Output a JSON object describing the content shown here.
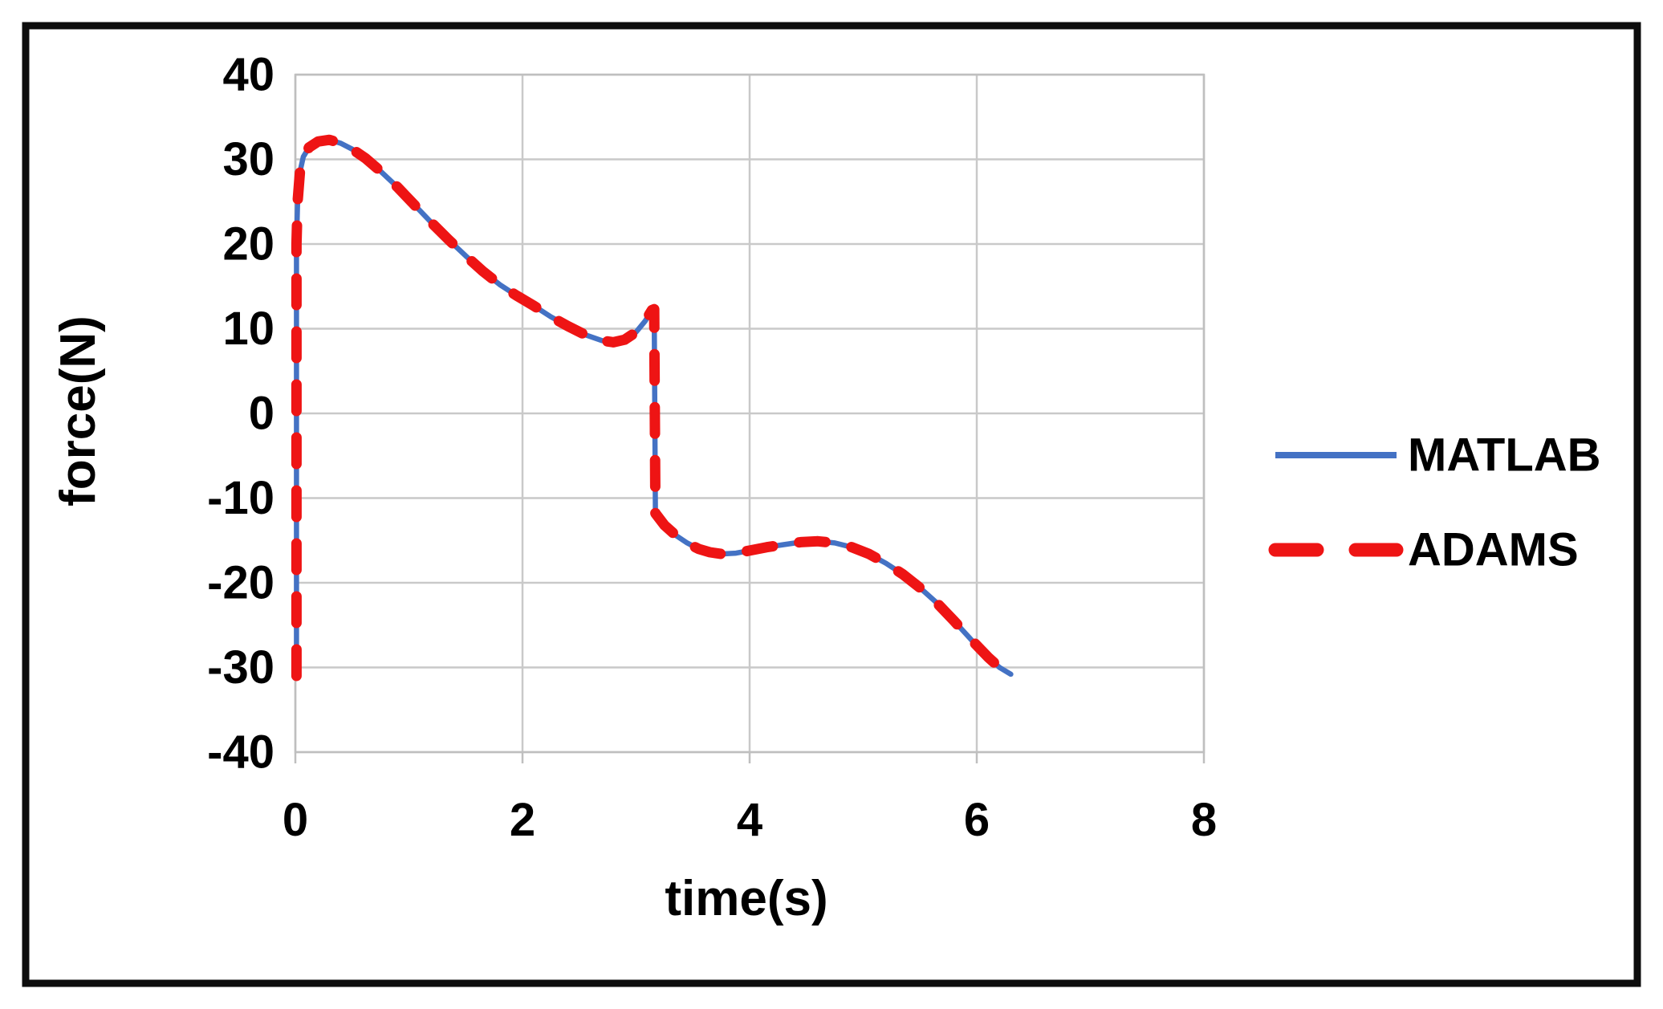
{
  "styles": {
    "background": "#FFFFFF",
    "frame_color": "#0D0D0D",
    "grid_color": "#C9C9C9",
    "axis_color": "#BFBFBF",
    "text_color": "#000000"
  },
  "chart_data": {
    "type": "line",
    "title": "",
    "xlabel": "time(s)",
    "ylabel": "force(N)",
    "xlim": [
      0,
      8
    ],
    "ylim": [
      -40,
      40
    ],
    "x_ticks": [
      0,
      2,
      4,
      6,
      8
    ],
    "y_ticks": [
      40,
      30,
      20,
      10,
      0,
      -10,
      -20,
      -30,
      -40
    ],
    "grid": true,
    "legend_position": "right",
    "legend_entries": [
      "MATLAB",
      "ADAMS"
    ],
    "series": [
      {
        "name": "MATLAB",
        "color": "#4472C4",
        "line_style": "solid",
        "line_width": 6.5,
        "points": [
          [
            0.01,
            -31
          ],
          [
            0.01,
            20
          ],
          [
            0.02,
            25
          ],
          [
            0.04,
            28.5
          ],
          [
            0.07,
            30.3
          ],
          [
            0.12,
            31.4
          ],
          [
            0.2,
            32.1
          ],
          [
            0.3,
            32.3
          ],
          [
            0.4,
            31.9
          ],
          [
            0.5,
            31.2
          ],
          [
            0.62,
            30.1
          ],
          [
            0.75,
            28.6
          ],
          [
            0.9,
            26.7
          ],
          [
            1.05,
            24.6
          ],
          [
            1.2,
            22.5
          ],
          [
            1.35,
            20.5
          ],
          [
            1.5,
            18.6
          ],
          [
            1.65,
            16.8
          ],
          [
            1.8,
            15.2
          ],
          [
            1.95,
            13.9
          ],
          [
            2.1,
            12.7
          ],
          [
            2.25,
            11.4
          ],
          [
            2.4,
            10.3
          ],
          [
            2.55,
            9.3
          ],
          [
            2.7,
            8.6
          ],
          [
            2.8,
            8.4
          ],
          [
            2.9,
            8.7
          ],
          [
            3.0,
            9.6
          ],
          [
            3.08,
            10.9
          ],
          [
            3.14,
            12.2
          ],
          [
            3.16,
            12.3
          ],
          [
            3.17,
            -11.8
          ],
          [
            3.25,
            -13.2
          ],
          [
            3.35,
            -14.4
          ],
          [
            3.45,
            -15.3
          ],
          [
            3.55,
            -16.0
          ],
          [
            3.65,
            -16.4
          ],
          [
            3.75,
            -16.6
          ],
          [
            3.88,
            -16.5
          ],
          [
            4.0,
            -16.2
          ],
          [
            4.15,
            -15.8
          ],
          [
            4.3,
            -15.5
          ],
          [
            4.45,
            -15.2
          ],
          [
            4.6,
            -15.1
          ],
          [
            4.75,
            -15.3
          ],
          [
            4.9,
            -15.8
          ],
          [
            5.05,
            -16.6
          ],
          [
            5.2,
            -17.7
          ],
          [
            5.35,
            -19.0
          ],
          [
            5.5,
            -20.6
          ],
          [
            5.65,
            -22.4
          ],
          [
            5.8,
            -24.5
          ],
          [
            5.95,
            -26.7
          ],
          [
            6.1,
            -28.8
          ],
          [
            6.2,
            -30.0
          ],
          [
            6.3,
            -30.8
          ]
        ]
      },
      {
        "name": "ADAMS",
        "color": "#EE1414",
        "line_style": "dashed",
        "line_width": 13,
        "points": [
          [
            0.01,
            -31
          ],
          [
            0.01,
            20
          ],
          [
            0.02,
            25
          ],
          [
            0.04,
            28.5
          ],
          [
            0.07,
            30.3
          ],
          [
            0.12,
            31.4
          ],
          [
            0.2,
            32.1
          ],
          [
            0.3,
            32.3
          ],
          [
            0.4,
            31.9
          ],
          [
            0.5,
            31.2
          ],
          [
            0.62,
            30.1
          ],
          [
            0.75,
            28.6
          ],
          [
            0.9,
            26.7
          ],
          [
            1.05,
            24.6
          ],
          [
            1.2,
            22.5
          ],
          [
            1.35,
            20.5
          ],
          [
            1.5,
            18.6
          ],
          [
            1.65,
            16.8
          ],
          [
            1.8,
            15.2
          ],
          [
            1.95,
            13.9
          ],
          [
            2.1,
            12.7
          ],
          [
            2.25,
            11.4
          ],
          [
            2.4,
            10.3
          ],
          [
            2.55,
            9.3
          ],
          [
            2.7,
            8.6
          ],
          [
            2.8,
            8.4
          ],
          [
            2.9,
            8.7
          ],
          [
            3.0,
            9.6
          ],
          [
            3.08,
            10.9
          ],
          [
            3.14,
            12.2
          ],
          [
            3.16,
            12.3
          ],
          [
            3.17,
            -11.8
          ],
          [
            3.25,
            -13.2
          ],
          [
            3.35,
            -14.4
          ],
          [
            3.45,
            -15.3
          ],
          [
            3.55,
            -16.0
          ],
          [
            3.65,
            -16.4
          ],
          [
            3.75,
            -16.6
          ],
          [
            3.88,
            -16.5
          ],
          [
            4.0,
            -16.2
          ],
          [
            4.15,
            -15.8
          ],
          [
            4.3,
            -15.5
          ],
          [
            4.45,
            -15.2
          ],
          [
            4.6,
            -15.1
          ],
          [
            4.75,
            -15.3
          ],
          [
            4.9,
            -15.8
          ],
          [
            5.05,
            -16.6
          ],
          [
            5.2,
            -17.7
          ],
          [
            5.35,
            -19.0
          ],
          [
            5.5,
            -20.6
          ],
          [
            5.65,
            -22.4
          ],
          [
            5.8,
            -24.5
          ],
          [
            5.95,
            -26.7
          ],
          [
            6.1,
            -28.8
          ],
          [
            6.2,
            -30.0
          ],
          [
            6.3,
            -30.8
          ]
        ]
      }
    ]
  }
}
